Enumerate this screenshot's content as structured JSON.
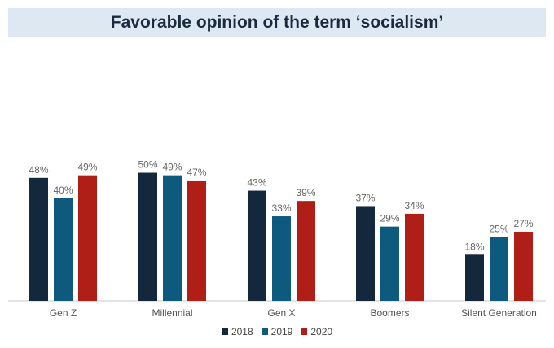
{
  "chart_data": {
    "type": "bar",
    "title": "Favorable opinion of the term ‘socialism’",
    "categories": [
      "Gen Z",
      "Millennial",
      "Gen X",
      "Boomers",
      "Silent Generation"
    ],
    "series": [
      {
        "name": "2018",
        "color": "#13283d",
        "values": [
          48,
          50,
          43,
          37,
          18
        ]
      },
      {
        "name": "2019",
        "color": "#0e5a7f",
        "values": [
          40,
          49,
          33,
          29,
          25
        ]
      },
      {
        "name": "2020",
        "color": "#b01f17",
        "values": [
          49,
          47,
          39,
          34,
          27
        ]
      }
    ],
    "value_suffix": "%",
    "ylim": [
      0,
      100
    ],
    "grid": false,
    "legend_position": "bottom"
  }
}
